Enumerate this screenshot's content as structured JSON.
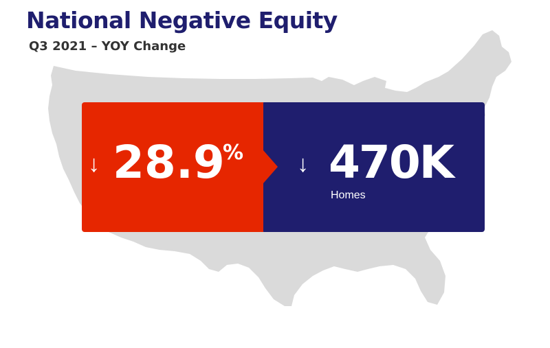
{
  "header": {
    "title": "National Negative Equity",
    "subtitle": "Q3 2021 – YOY Change"
  },
  "percent_card": {
    "arrow": "↓",
    "value": "28.9",
    "unit": "%",
    "color": "#e62600"
  },
  "homes_card": {
    "arrow": "↓",
    "value": "470K",
    "caption": "Homes",
    "color": "#1f1e6e"
  },
  "colors": {
    "map": "#d9d9d9",
    "title": "#1f1e6e",
    "subtitle": "#333333"
  }
}
